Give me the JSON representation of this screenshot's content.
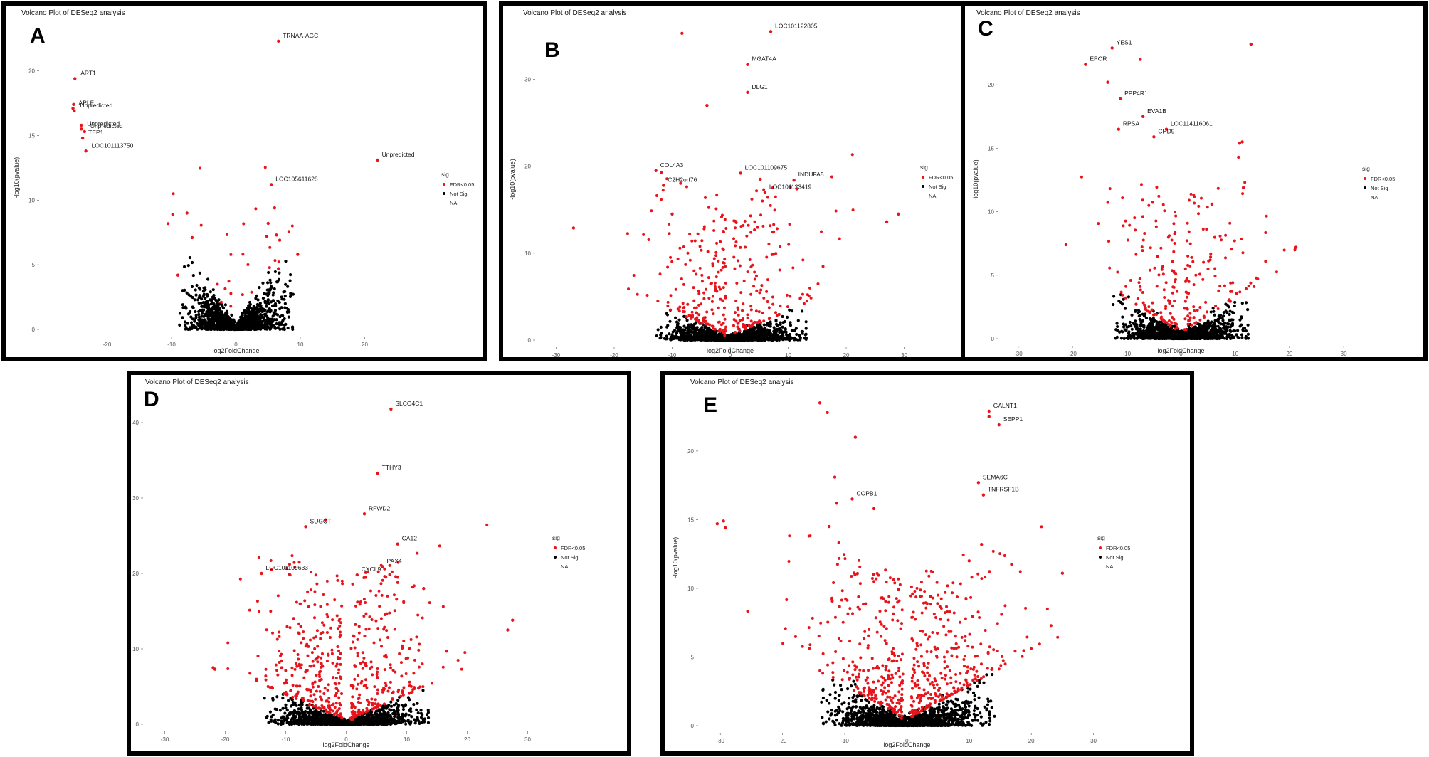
{
  "chart_data": [
    {
      "panel": "A",
      "type": "scatter",
      "title": "Volcano Plot of DESeq2 analysis",
      "xlabel": "log2FoldChange",
      "ylabel": "-log10(pvalue)",
      "xlim": [
        -30,
        30
      ],
      "ylim": [
        0,
        23.5
      ],
      "xticks": [
        -20,
        -10,
        0,
        10,
        20
      ],
      "yticks": [
        0,
        5,
        10,
        15,
        20
      ],
      "legend": {
        "title": "sig",
        "items": [
          "FDR<0.05",
          "Not Sig",
          "NA"
        ],
        "placement": "right"
      },
      "seed": 11,
      "cloud": {
        "spread": 8.5,
        "height": 6.0,
        "red_count": 25,
        "red_bias": 0
      },
      "points": [
        {
          "x": 6.6,
          "y": 22.3,
          "label": "TRNAA-AGC"
        },
        {
          "x": -25.0,
          "y": 19.4,
          "label": "ART1"
        },
        {
          "x": -25.2,
          "y": 17.4
        },
        {
          "x": -25.3,
          "y": 17.1,
          "label": "APLF"
        },
        {
          "x": -25.1,
          "y": 16.9,
          "label": "Unpredicted"
        },
        {
          "x": -24.0,
          "y": 15.8
        },
        {
          "x": -24.0,
          "y": 15.5,
          "label": "Unpredicted"
        },
        {
          "x": -23.5,
          "y": 15.3,
          "label": "Unpredicted"
        },
        {
          "x": -23.8,
          "y": 14.8,
          "label": "TEP1"
        },
        {
          "x": -23.3,
          "y": 13.8,
          "label": "LOC101113750"
        },
        {
          "x": 22.0,
          "y": 13.1,
          "label": "Unpredicted"
        },
        {
          "x": 5.5,
          "y": 11.2,
          "label": "LOC105611628"
        },
        {
          "x": 6.0,
          "y": 9.4
        },
        {
          "x": 5.0,
          "y": 8.2
        },
        {
          "x": 6.3,
          "y": 7.3
        },
        {
          "x": 4.8,
          "y": 7.2
        },
        {
          "x": 6.8,
          "y": 6.9
        },
        {
          "x": -9.8,
          "y": 8.9
        },
        {
          "x": -7.6,
          "y": 9.0
        },
        {
          "x": -6.8,
          "y": 7.1
        },
        {
          "x": 9.6,
          "y": 5.8
        },
        {
          "x": -9.0,
          "y": 4.2
        },
        {
          "x": 6.6,
          "y": 4.7
        }
      ]
    },
    {
      "panel": "B",
      "type": "scatter",
      "title": "Volcano Plot of DESeq2 analysis",
      "xlabel": "log2FoldChange",
      "ylabel": "-log10(pvalue)",
      "xlim": [
        -33,
        33
      ],
      "ylim": [
        0,
        37
      ],
      "xticks": [
        -30,
        -20,
        -10,
        0,
        10,
        20,
        30
      ],
      "yticks": [
        0,
        10,
        20,
        30
      ],
      "legend": {
        "title": "sig",
        "items": [
          "FDR<0.05",
          "Not Sig",
          "NA"
        ],
        "placement": "right"
      },
      "seed": 22,
      "cloud": {
        "spread": 12.5,
        "height": 3.6,
        "red_count": 320,
        "red_bias": 0
      },
      "points": [
        {
          "x": 7.0,
          "y": 35.5,
          "label": "LOC101122805"
        },
        {
          "x": -8.3,
          "y": 35.3
        },
        {
          "x": 3.0,
          "y": 31.7,
          "label": "MGAT4A"
        },
        {
          "x": 3.0,
          "y": 28.5,
          "label": "DLG1"
        },
        {
          "x": -4.0,
          "y": 27.0
        },
        {
          "x": -12.8,
          "y": 19.5,
          "label": "COL4A3"
        },
        {
          "x": -11.5,
          "y": 17.8,
          "label": "C2H2orf76"
        },
        {
          "x": 1.8,
          "y": 19.2,
          "label": "LOC101109675"
        },
        {
          "x": 5.2,
          "y": 18.5
        },
        {
          "x": 11.0,
          "y": 18.4,
          "label": "INDUFA5"
        },
        {
          "x": 6.0,
          "y": 17.0,
          "label": "LOC101123419"
        },
        {
          "x": 11.5,
          "y": 17.4
        },
        {
          "x": -27.0,
          "y": 12.9
        },
        {
          "x": 27.0,
          "y": 13.6
        },
        {
          "x": 29.0,
          "y": 14.5
        },
        {
          "x": -10.0,
          "y": 14.5
        }
      ]
    },
    {
      "panel": "C",
      "type": "scatter",
      "title": "Volcano Plot of DESeq2 analysis",
      "xlabel": "log2FoldChange",
      "ylabel": "-log10(pvalue)",
      "xlim": [
        -33,
        33
      ],
      "ylim": [
        0,
        25
      ],
      "xticks": [
        -30,
        -20,
        -10,
        0,
        10,
        20,
        30
      ],
      "yticks": [
        0,
        5,
        10,
        15,
        20
      ],
      "legend": {
        "title": "sig",
        "items": [
          "FDR<0.05",
          "Not Sig",
          "NA"
        ],
        "placement": "right"
      },
      "seed": 33,
      "cloud": {
        "spread": 12.0,
        "height": 3.2,
        "red_count": 230,
        "red_bias": 0
      },
      "points": [
        {
          "x": -12.7,
          "y": 22.9,
          "label": "YES1"
        },
        {
          "x": -17.6,
          "y": 21.6,
          "label": "EPOR"
        },
        {
          "x": -7.5,
          "y": 22.0
        },
        {
          "x": 12.9,
          "y": 23.2
        },
        {
          "x": -13.5,
          "y": 20.2
        },
        {
          "x": -11.2,
          "y": 18.9,
          "label": "PPP4R1"
        },
        {
          "x": -7.0,
          "y": 17.5,
          "label": "EVA1B"
        },
        {
          "x": -11.5,
          "y": 16.5,
          "label": "RPSA"
        },
        {
          "x": -2.7,
          "y": 16.5,
          "label": "LOC114116061"
        },
        {
          "x": -5.0,
          "y": 15.9,
          "label": "CHD9"
        },
        {
          "x": 10.8,
          "y": 15.4
        },
        {
          "x": 11.3,
          "y": 15.5
        },
        {
          "x": 10.6,
          "y": 14.3
        },
        {
          "x": 11.5,
          "y": 11.9
        },
        {
          "x": 5.7,
          "y": 10.6
        },
        {
          "x": -21.2,
          "y": 7.4
        },
        {
          "x": 21.0,
          "y": 7.0
        },
        {
          "x": 21.2,
          "y": 7.2
        }
      ]
    },
    {
      "panel": "D",
      "type": "scatter",
      "title": "Volcano Plot of DESeq2 analysis",
      "xlabel": "log2FoldChange",
      "ylabel": "-log10(pvalue)",
      "xlim": [
        -33,
        35
      ],
      "ylim": [
        0,
        45
      ],
      "xticks": [
        -30,
        -20,
        -10,
        0,
        10,
        20,
        30
      ],
      "yticks": [
        0,
        10,
        20,
        30,
        40
      ],
      "legend": {
        "title": "sig",
        "items": [
          "FDR<0.05",
          "Not Sig",
          "NA"
        ],
        "placement": "right"
      },
      "seed": 44,
      "cloud": {
        "spread": 13.0,
        "height": 4.5,
        "red_count": 520,
        "red_bias": 0
      },
      "points": [
        {
          "x": 7.4,
          "y": 41.8,
          "label": "SLCO4C1"
        },
        {
          "x": 5.2,
          "y": 33.3,
          "label": "TTHY3"
        },
        {
          "x": 3.0,
          "y": 27.9,
          "label": "RFWD2"
        },
        {
          "x": -3.4,
          "y": 27.1
        },
        {
          "x": -6.7,
          "y": 26.2,
          "label": "SUGCT"
        },
        {
          "x": 8.5,
          "y": 23.9,
          "label": "CA12"
        },
        {
          "x": 6.0,
          "y": 20.9,
          "label": "PAX4"
        },
        {
          "x": 1.8,
          "y": 19.8,
          "label": "CXCL9"
        },
        {
          "x": -14.0,
          "y": 20.0,
          "label": "LOC101109633"
        },
        {
          "x": -9.3,
          "y": 19.8
        },
        {
          "x": 27.5,
          "y": 13.8
        },
        {
          "x": 26.7,
          "y": 12.5
        },
        {
          "x": 16.6,
          "y": 9.7
        },
        {
          "x": -22.0,
          "y": 7.5
        },
        {
          "x": -21.7,
          "y": 7.3
        },
        {
          "x": 8.5,
          "y": 19.5
        },
        {
          "x": 11.0,
          "y": 18.2
        },
        {
          "x": 12.8,
          "y": 18.0
        }
      ]
    },
    {
      "panel": "E",
      "type": "scatter",
      "title": "Volcano Plot of DESeq2 analysis",
      "xlabel": "log2FoldChange",
      "ylabel": "-log10(pvalue)",
      "xlim": [
        -33,
        36
      ],
      "ylim": [
        0,
        24.5
      ],
      "xticks": [
        -30,
        -20,
        -10,
        0,
        10,
        20,
        30
      ],
      "yticks": [
        0,
        5,
        10,
        15,
        20
      ],
      "legend": {
        "title": "sig",
        "items": [
          "FDR<0.05",
          "Not Sig",
          "NA"
        ],
        "placement": "right"
      },
      "seed": 55,
      "cloud": {
        "spread": 13.5,
        "height": 3.3,
        "red_count": 560,
        "red_bias": 0.4
      },
      "points": [
        {
          "x": 13.2,
          "y": 22.9,
          "label": "GALNT1"
        },
        {
          "x": 13.2,
          "y": 22.5
        },
        {
          "x": 14.8,
          "y": 21.9,
          "label": "SEPP1"
        },
        {
          "x": -14.0,
          "y": 23.5
        },
        {
          "x": -12.8,
          "y": 22.8
        },
        {
          "x": -8.3,
          "y": 21.0
        },
        {
          "x": 11.5,
          "y": 17.7,
          "label": "SEMA6C"
        },
        {
          "x": 12.3,
          "y": 16.8,
          "label": "TNFRSF1B"
        },
        {
          "x": -8.8,
          "y": 16.5,
          "label": "COPB1"
        },
        {
          "x": -5.3,
          "y": 15.8
        },
        {
          "x": -11.6,
          "y": 18.1
        },
        {
          "x": -11.3,
          "y": 16.2
        },
        {
          "x": -12.5,
          "y": 14.5
        },
        {
          "x": -30.5,
          "y": 14.7
        },
        {
          "x": -29.5,
          "y": 14.9
        },
        {
          "x": -29.2,
          "y": 14.4
        },
        {
          "x": 25.0,
          "y": 11.1
        },
        {
          "x": 12.0,
          "y": 13.2
        },
        {
          "x": 10.0,
          "y": 12.0
        }
      ]
    }
  ],
  "panels": [
    {
      "letter": "A"
    },
    {
      "letter": "B"
    },
    {
      "letter": "C"
    },
    {
      "letter": "D"
    },
    {
      "letter": "E"
    }
  ]
}
